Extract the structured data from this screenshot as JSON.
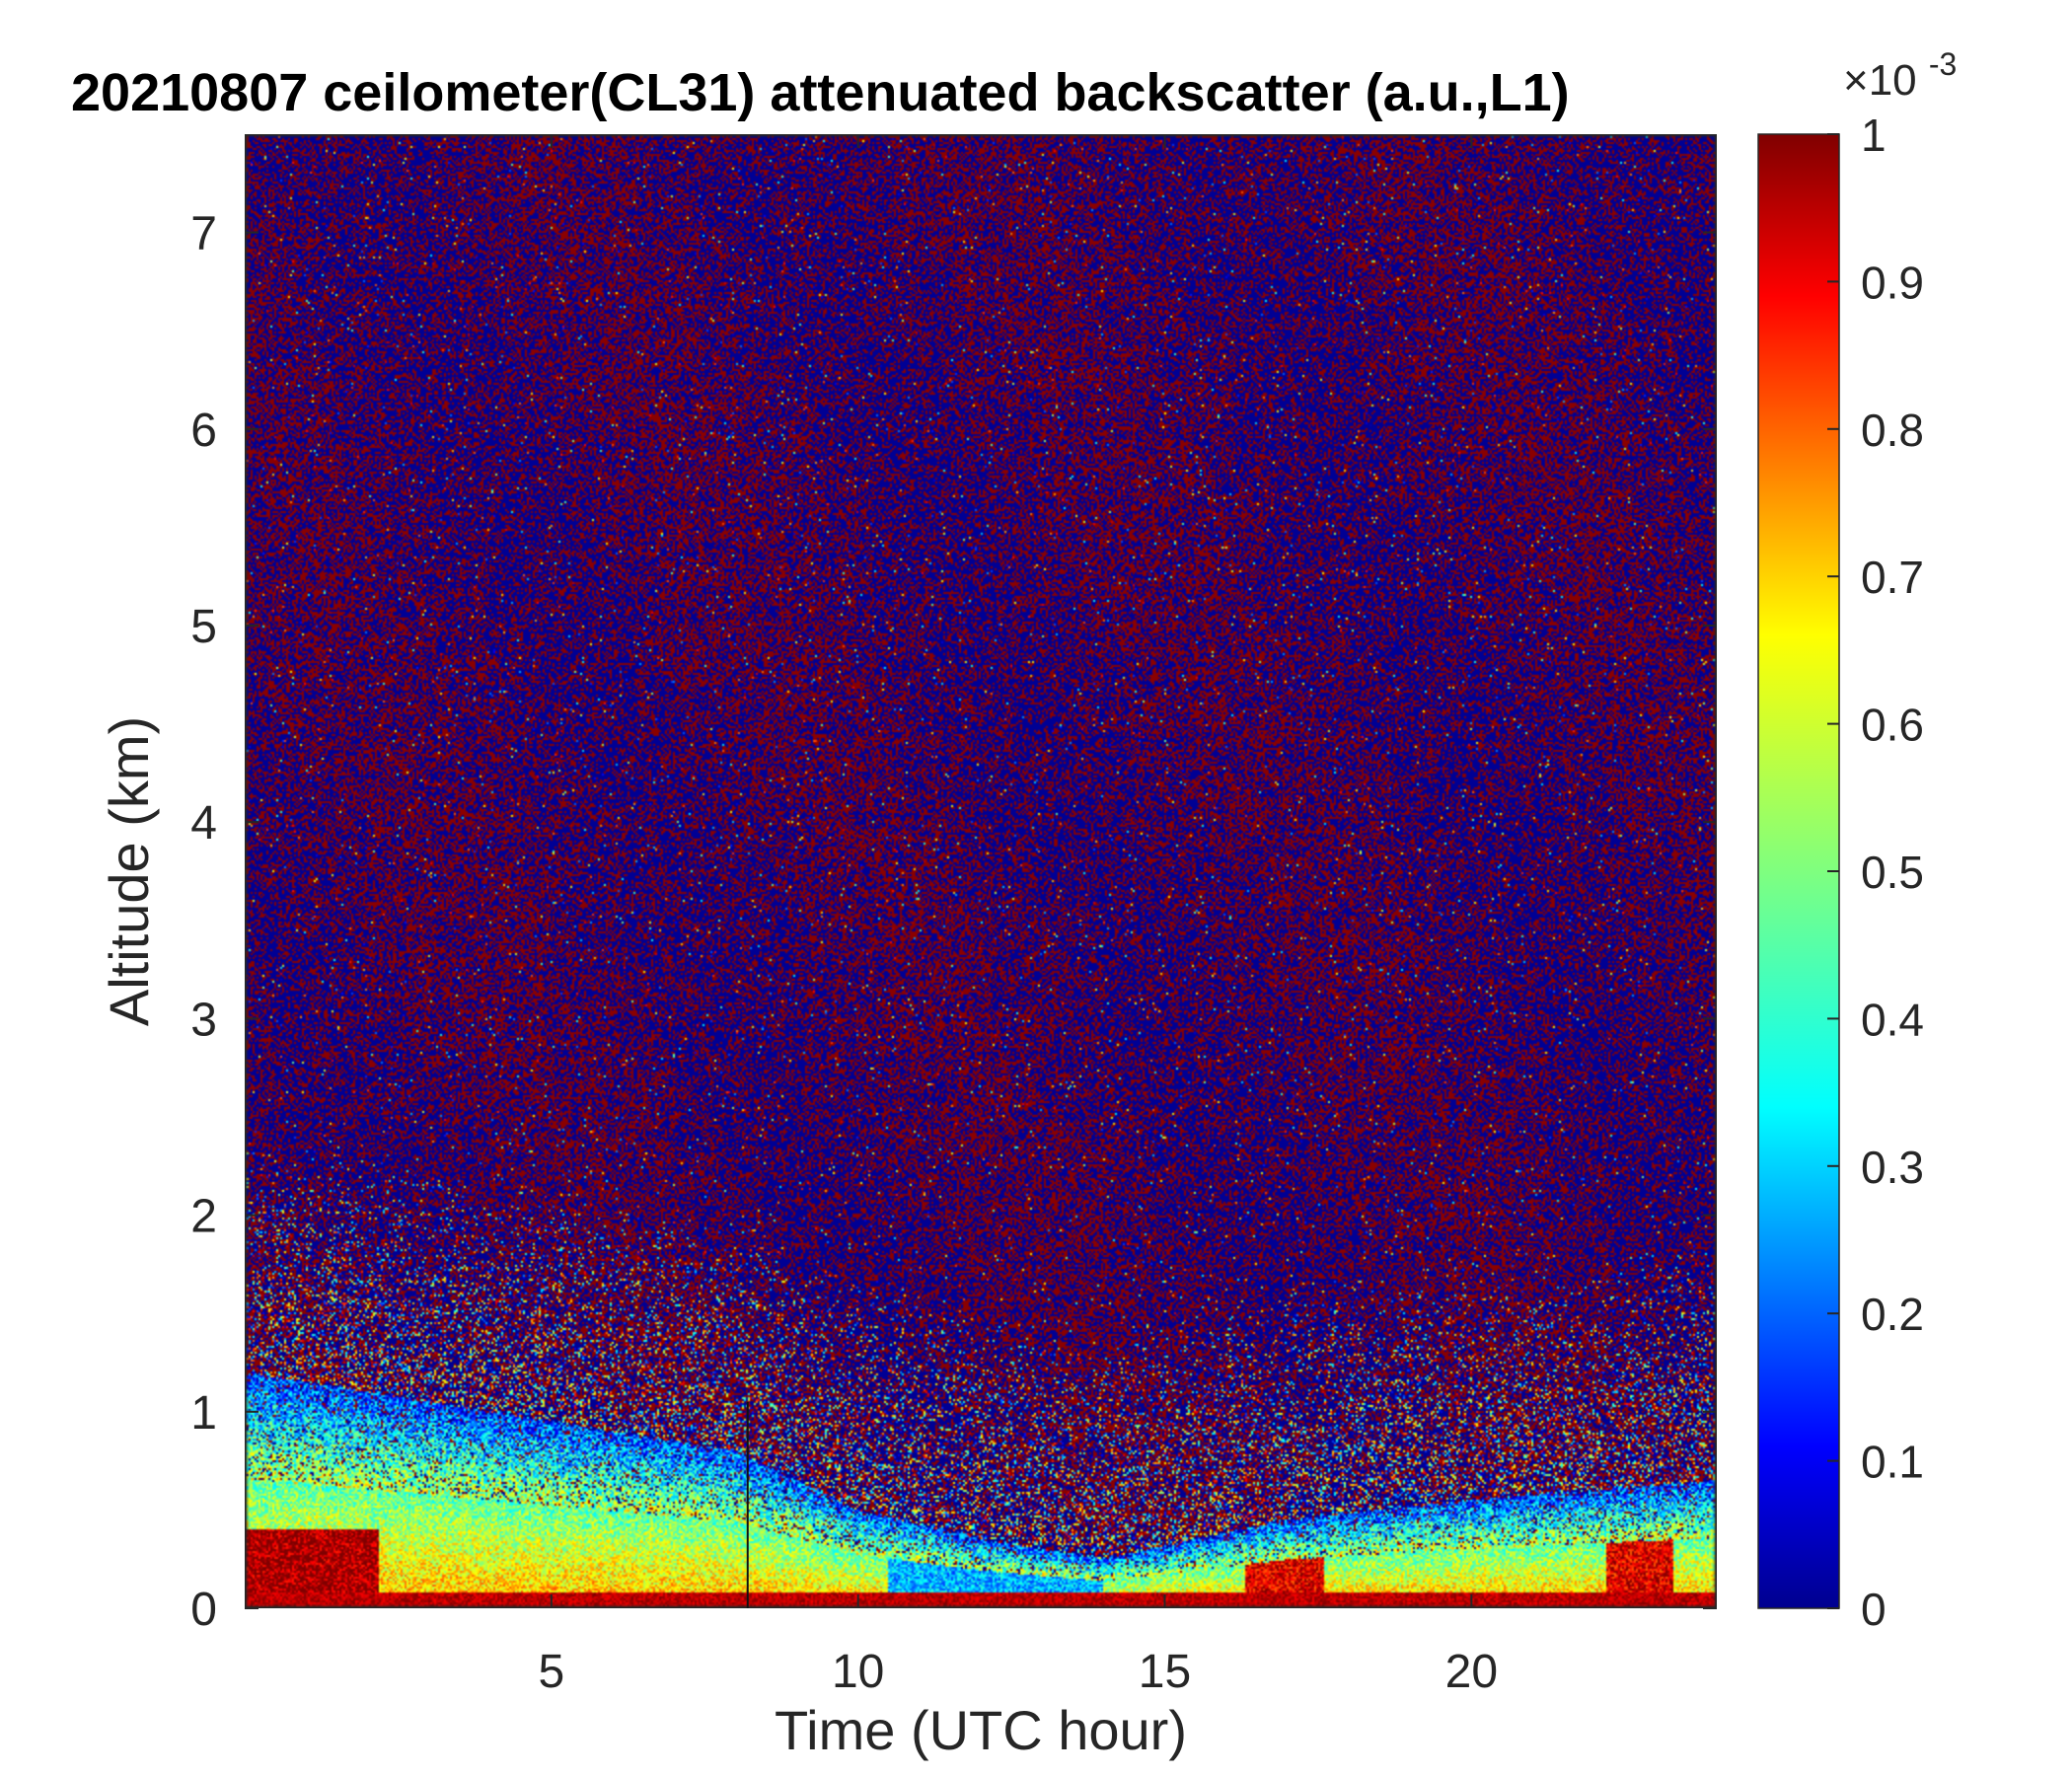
{
  "chart_data": {
    "type": "heatmap",
    "title": "20210807 ceilometer(CL31) attenuated backscatter (a.u.,L1)",
    "xlabel": "Time (UTC hour)",
    "ylabel": "Altitude (km)",
    "xlim": [
      0,
      24
    ],
    "ylim": [
      0,
      7.5
    ],
    "xticks": [
      5,
      10,
      15,
      20
    ],
    "yticks": [
      0,
      1,
      2,
      3,
      4,
      5,
      6,
      7
    ],
    "colorbar": {
      "clim": [
        0,
        1
      ],
      "ticks": [
        0,
        0.1,
        0.2,
        0.3,
        0.4,
        0.5,
        0.6,
        0.7,
        0.8,
        0.9,
        1
      ],
      "exponent_label": "×10",
      "exponent_value": "-3",
      "colormap": "jet"
    },
    "marked_time_hour": 8.2,
    "features": {
      "surface_layer_top_km": 0.08,
      "aerosol_layer_top_km_at_hour": [
        {
          "hour": 0,
          "top_km": 1.2
        },
        {
          "hour": 5,
          "top_km": 0.95
        },
        {
          "hour": 8,
          "top_km": 0.8
        },
        {
          "hour": 10,
          "top_km": 0.5
        },
        {
          "hour": 12,
          "top_km": 0.35
        },
        {
          "hour": 14,
          "top_km": 0.25
        },
        {
          "hour": 17,
          "top_km": 0.45
        },
        {
          "hour": 20,
          "top_km": 0.55
        },
        {
          "hour": 24,
          "top_km": 0.65
        }
      ]
    }
  }
}
